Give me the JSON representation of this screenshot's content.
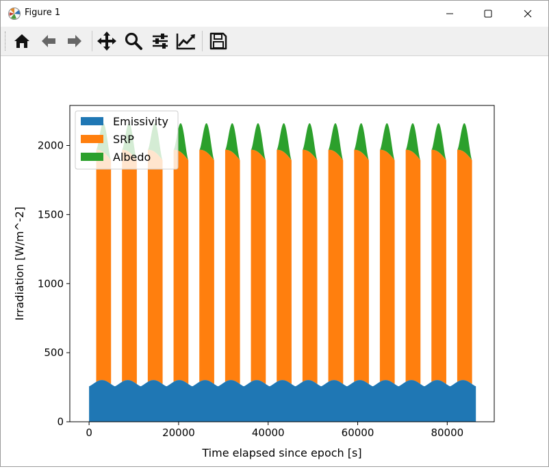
{
  "window": {
    "title": "Figure 1"
  },
  "toolbar": {
    "buttons": [
      {
        "name": "home-button",
        "icon": "home-icon"
      },
      {
        "name": "back-button",
        "icon": "arrow-left-icon"
      },
      {
        "name": "forward-button",
        "icon": "arrow-right-icon"
      },
      {
        "name": "pan-button",
        "icon": "move-icon"
      },
      {
        "name": "zoom-button",
        "icon": "magnifier-icon"
      },
      {
        "name": "configure-subplots-button",
        "icon": "sliders-icon"
      },
      {
        "name": "edit-axis-button",
        "icon": "line-chart-icon"
      },
      {
        "name": "save-button",
        "icon": "floppy-disk-icon"
      }
    ]
  },
  "colors": {
    "emissivity": "#1f77b4",
    "srp": "#ff7f0e",
    "albedo": "#2ca02c"
  },
  "chart_data": {
    "type": "area",
    "stacked": true,
    "xlabel": "Time elapsed since epoch [s]",
    "ylabel": "Irradiation [W/m^-2]",
    "xlim": [
      -4300,
      90500
    ],
    "ylim": [
      0,
      2290
    ],
    "xticks": [
      0,
      20000,
      40000,
      60000,
      80000
    ],
    "xtick_labels": [
      "0",
      "20000",
      "40000",
      "60000",
      "80000"
    ],
    "yticks": [
      0,
      500,
      1000,
      1500,
      2000
    ],
    "ytick_labels": [
      "0",
      "500",
      "1000",
      "1500",
      "2000"
    ],
    "legend": {
      "placement": "upper left",
      "entries": [
        "Emissivity",
        "SRP",
        "Albedo"
      ]
    },
    "grid": false,
    "orbit_period_s": 5760,
    "num_orbits": 15,
    "x_range": [
      0,
      86400
    ],
    "sunlit_window_s": [
      1600,
      4900
    ],
    "series": [
      {
        "name": "Emissivity",
        "base_w_m2": 257,
        "peak_w_m2": 302,
        "color": "#1f77b4"
      },
      {
        "name": "SRP",
        "start_w_m2": 1680,
        "end_w_m2": 1620,
        "color": "#ff7f0e"
      },
      {
        "name": "Albedo",
        "peak_total_w_m2": 2160,
        "color": "#2ca02c"
      }
    ]
  }
}
